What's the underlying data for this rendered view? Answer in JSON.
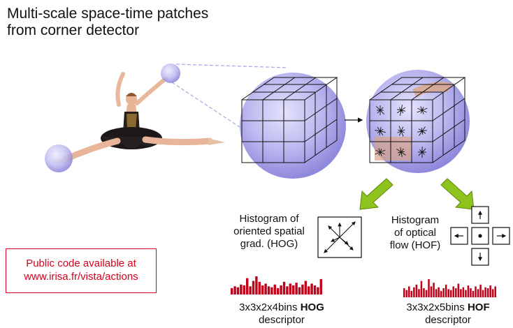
{
  "title": {
    "line1": "Multi-scale space-time patches",
    "line2": "from corner detector"
  },
  "hog": {
    "label_lines": [
      "Histogram of",
      "oriented spatial",
      "grad. (HOG)"
    ],
    "descriptor_prefix": "3x3x2x4bins ",
    "descriptor_bold": "HOG",
    "descriptor_suffix": "descriptor",
    "histogram_values": [
      0.35,
      0.45,
      0.4,
      0.55,
      0.5,
      0.9,
      0.45,
      0.75,
      1.0,
      0.7,
      0.5,
      0.6,
      0.45,
      0.4,
      0.55,
      0.35,
      0.5,
      0.7,
      0.45,
      0.6,
      0.5,
      0.65,
      0.4,
      0.55,
      0.75,
      0.45,
      0.6,
      0.5,
      0.4,
      0.85
    ]
  },
  "hof": {
    "label_lines": [
      "Histogram",
      "of optical",
      "flow (HOF)"
    ],
    "descriptor_prefix": "3x3x2x5bins ",
    "descriptor_bold": "HOF",
    "descriptor_suffix": "descriptor",
    "histogram_values": [
      0.5,
      0.4,
      0.6,
      0.35,
      0.55,
      0.7,
      0.45,
      0.9,
      0.5,
      0.4,
      1.0,
      0.6,
      0.8,
      0.45,
      0.55,
      0.35,
      0.5,
      0.7,
      0.45,
      0.4,
      0.6,
      0.5,
      0.75,
      0.45,
      0.55,
      0.4,
      0.65,
      0.5,
      0.35,
      0.6,
      0.45,
      0.7,
      0.4,
      0.55,
      0.5,
      0.65,
      0.45,
      0.6
    ]
  },
  "public_code": {
    "line1": "Public code available at",
    "line2": "www.irisa.fr/vista/actions"
  },
  "colors": {
    "sphere": "#b8b5ee",
    "histogram": "#c0001a",
    "arrow_green": "#8ec21c",
    "public_border": "#d8001c"
  }
}
